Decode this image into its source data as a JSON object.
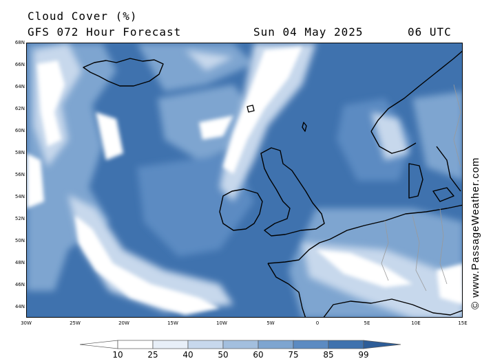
{
  "header": {
    "title": "Cloud Cover (%)",
    "subtitle": "GFS 072 Hour Forecast",
    "datetime": "Sun 04 May 2025",
    "utc": "06 UTC"
  },
  "map": {
    "lat_labels": [
      "68N",
      "66N",
      "64N",
      "62N",
      "60N",
      "58N",
      "56N",
      "54N",
      "52N",
      "50N",
      "48N",
      "46N",
      "44N"
    ],
    "lon_labels": [
      "30W",
      "25W",
      "20W",
      "15W",
      "10W",
      "5W",
      "0",
      "5E",
      "10E",
      "15E"
    ],
    "lat_range": [
      43,
      68
    ],
    "lon_range": [
      -30,
      15
    ],
    "ocean_color": "#3f72ae",
    "coast_color": "#000000"
  },
  "legend": {
    "levels": [
      "10",
      "25",
      "40",
      "50",
      "60",
      "75",
      "85",
      "99"
    ],
    "colors": [
      "#ffffff",
      "#ffffff",
      "#e8eff8",
      "#c7d8ec",
      "#a3bfde",
      "#7ea5d0",
      "#5c8bc2",
      "#3f72ae",
      "#2d5d98"
    ]
  },
  "credit": "© www.PassageWeather.com"
}
